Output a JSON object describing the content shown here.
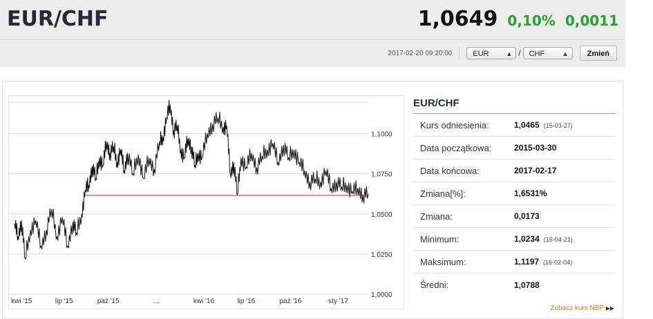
{
  "header": {
    "title": "EUR/CHF",
    "rate": "1,0649",
    "change_pct": "0,10%",
    "change_abs": "0,0011",
    "timestamp": "2017-02-20 09:20:00",
    "base_currency": "EUR",
    "quote_currency": "CHF",
    "separator": "/",
    "change_button": "Zmień"
  },
  "colors": {
    "up": "#2aa22e",
    "reference_line": "#d22222",
    "link": "#e8711b"
  },
  "stats": {
    "title": "EUR/CHF",
    "rows": [
      {
        "label": "Kurs odniesienia:",
        "value": "1,0465",
        "date": "(15-03-27)"
      },
      {
        "label": "Data początkowa:",
        "value": "2015-03-30",
        "date": ""
      },
      {
        "label": "Data końcowa:",
        "value": "2017-02-17",
        "date": ""
      },
      {
        "label": "Zmiana[%]:",
        "value": "1,6531%",
        "date": ""
      },
      {
        "label": "Zmiana:",
        "value": "0,0173",
        "date": ""
      },
      {
        "label": "Minimum:",
        "value": "1,0234",
        "date": "(15-04-21)"
      },
      {
        "label": "Maksimum:",
        "value": "1,1197",
        "date": "(16-02-04)"
      },
      {
        "label": "Średni:",
        "value": "1,0788",
        "date": ""
      }
    ]
  },
  "nbp_link": {
    "label": "Zobacz kurs NBP",
    "icon": "double-chevron-right-icon"
  },
  "chart_data": {
    "type": "line",
    "title": "",
    "xlabel": "",
    "ylabel": "",
    "x_ticks": [
      "kwi '15",
      "lip '15",
      "paź '15",
      "...",
      "kwi '16",
      "lip '16",
      "paź '16",
      "sty '17"
    ],
    "y_ticks": [
      "1,1000",
      "1,0750",
      "1,0500",
      "1,0250",
      "1,0000"
    ],
    "y_tick_values": [
      1.1,
      1.075,
      1.05,
      1.025,
      1.0
    ],
    "ylim": [
      1.0,
      1.12
    ],
    "reference_line": {
      "value": 1.0615
    },
    "grid": "horizontal",
    "series": [
      {
        "points": [
          [
            0,
            1.044
          ],
          [
            0.01,
            1.036
          ],
          [
            0.02,
            1.046
          ],
          [
            0.03,
            1.022
          ],
          [
            0.045,
            1.04
          ],
          [
            0.06,
            1.046
          ],
          [
            0.075,
            1.03
          ],
          [
            0.09,
            1.04
          ],
          [
            0.105,
            1.053
          ],
          [
            0.12,
            1.036
          ],
          [
            0.135,
            1.048
          ],
          [
            0.15,
            1.03
          ],
          [
            0.165,
            1.045
          ],
          [
            0.175,
            1.038
          ],
          [
            0.19,
            1.05
          ],
          [
            0.2,
            1.065
          ],
          [
            0.21,
            1.068
          ],
          [
            0.22,
            1.08
          ],
          [
            0.23,
            1.072
          ],
          [
            0.24,
            1.085
          ],
          [
            0.25,
            1.08
          ],
          [
            0.26,
            1.095
          ],
          [
            0.27,
            1.088
          ],
          [
            0.28,
            1.092
          ],
          [
            0.29,
            1.082
          ],
          [
            0.3,
            1.09
          ],
          [
            0.31,
            1.077
          ],
          [
            0.32,
            1.088
          ],
          [
            0.335,
            1.075
          ],
          [
            0.35,
            1.087
          ],
          [
            0.365,
            1.072
          ],
          [
            0.38,
            1.085
          ],
          [
            0.395,
            1.078
          ],
          [
            0.41,
            1.095
          ],
          [
            0.42,
            1.098
          ],
          [
            0.43,
            1.11
          ],
          [
            0.44,
            1.118
          ],
          [
            0.45,
            1.102
          ],
          [
            0.46,
            1.105
          ],
          [
            0.47,
            1.09
          ],
          [
            0.48,
            1.085
          ],
          [
            0.49,
            1.097
          ],
          [
            0.5,
            1.092
          ],
          [
            0.51,
            1.08
          ],
          [
            0.52,
            1.088
          ],
          [
            0.53,
            1.085
          ],
          [
            0.545,
            1.1
          ],
          [
            0.56,
            1.106
          ],
          [
            0.575,
            1.11
          ],
          [
            0.59,
            1.104
          ],
          [
            0.6,
            1.105
          ],
          [
            0.61,
            1.075
          ],
          [
            0.62,
            1.082
          ],
          [
            0.63,
            1.062
          ],
          [
            0.64,
            1.085
          ],
          [
            0.655,
            1.079
          ],
          [
            0.67,
            1.088
          ],
          [
            0.685,
            1.079
          ],
          [
            0.7,
            1.086
          ],
          [
            0.715,
            1.09
          ],
          [
            0.73,
            1.094
          ],
          [
            0.745,
            1.082
          ],
          [
            0.76,
            1.093
          ],
          [
            0.775,
            1.085
          ],
          [
            0.79,
            1.09
          ],
          [
            0.805,
            1.082
          ],
          [
            0.82,
            1.077
          ],
          [
            0.835,
            1.07
          ],
          [
            0.85,
            1.072
          ],
          [
            0.865,
            1.07
          ],
          [
            0.88,
            1.077
          ],
          [
            0.895,
            1.066
          ],
          [
            0.91,
            1.07
          ],
          [
            0.925,
            1.067
          ],
          [
            0.94,
            1.068
          ],
          [
            0.955,
            1.064
          ],
          [
            0.97,
            1.066
          ],
          [
            0.985,
            1.062
          ],
          [
            1.0,
            1.0625
          ]
        ]
      }
    ]
  }
}
